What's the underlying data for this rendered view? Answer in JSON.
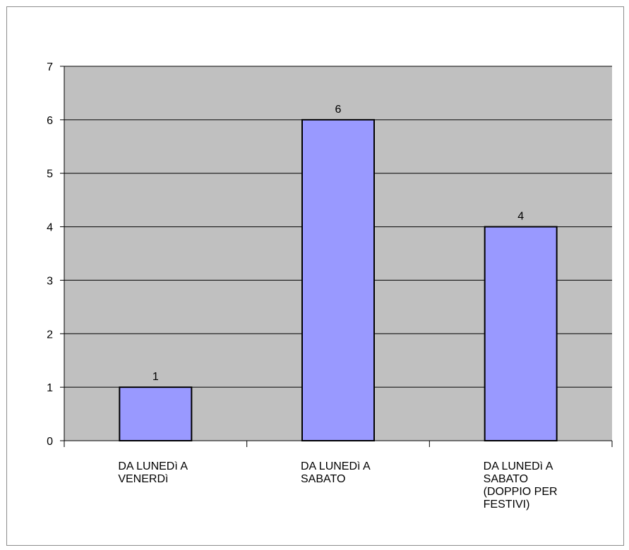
{
  "chart_data": {
    "type": "bar",
    "categories": [
      [
        "DA LUNEDì A",
        "VENERDì"
      ],
      [
        "DA LUNEDì A",
        "SABATO"
      ],
      [
        "DA LUNEDì A",
        "SABATO",
        "(DOPPIO PER",
        "FESTIVI)"
      ]
    ],
    "values": [
      1,
      6,
      4
    ],
    "data_labels": [
      "1",
      "6",
      "4"
    ],
    "ylim": [
      0,
      7
    ],
    "yticks": [
      "0",
      "1",
      "2",
      "3",
      "4",
      "5",
      "6",
      "7"
    ],
    "grid": true,
    "legend": "none",
    "title": "",
    "xlabel": "",
    "ylabel": ""
  },
  "colors": {
    "plot_background": "#c0c0c0",
    "bar_fill": "#9999ff",
    "bar_stroke": "#000000",
    "gridline": "#000000",
    "frame": "#8c8c8c"
  }
}
